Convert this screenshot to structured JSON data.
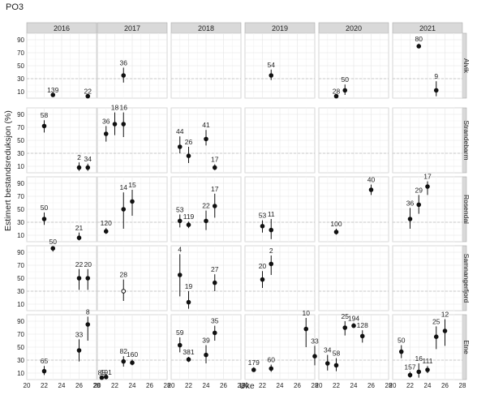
{
  "title": "PO3",
  "chart_data": {
    "type": "scatter",
    "subtype": "point-with-interval, faceted",
    "xlabel": "Uke",
    "ylabel": "Estimert bestandsreduksjon (%)",
    "xlim": [
      20,
      28
    ],
    "xticks": [
      20,
      22,
      24,
      26,
      28
    ],
    "ylim": [
      0,
      100
    ],
    "yticks": [
      10,
      30,
      50,
      70,
      90
    ],
    "reference_line_y": 30,
    "grid": true,
    "columns": [
      "2016",
      "2017",
      "2018",
      "2019",
      "2020",
      "2021"
    ],
    "rows": [
      "Alvik",
      "Strandebarm",
      "Rosendal",
      "Samnangerfjord",
      "Etne"
    ],
    "panels": [
      {
        "row": "Alvik",
        "col": "2016",
        "points": [
          {
            "x": 23,
            "y": 5,
            "n": "139"
          },
          {
            "x": 27,
            "y": 3,
            "n": "22"
          }
        ]
      },
      {
        "row": "Alvik",
        "col": "2017",
        "points": [
          {
            "x": 23,
            "y": 35,
            "lo": 24,
            "hi": 47,
            "n": "36"
          }
        ]
      },
      {
        "row": "Alvik",
        "col": "2018",
        "points": []
      },
      {
        "row": "Alvik",
        "col": "2019",
        "points": [
          {
            "x": 23,
            "y": 35,
            "lo": 28,
            "hi": 44,
            "n": "54"
          }
        ]
      },
      {
        "row": "Alvik",
        "col": "2020",
        "points": [
          {
            "x": 22,
            "y": 3,
            "n": "28"
          },
          {
            "x": 23,
            "y": 12,
            "lo": 5,
            "hi": 21,
            "n": "50"
          }
        ]
      },
      {
        "row": "Alvik",
        "col": "2021",
        "points": [
          {
            "x": 23,
            "y": 80,
            "lo": 77,
            "hi": 84,
            "n": "80"
          },
          {
            "x": 25,
            "y": 12,
            "lo": 3,
            "hi": 26,
            "n": "9"
          }
        ]
      },
      {
        "row": "Strandebarm",
        "col": "2016",
        "points": [
          {
            "x": 22,
            "y": 72,
            "lo": 62,
            "hi": 81,
            "n": "58"
          },
          {
            "x": 26,
            "y": 8,
            "lo": 3,
            "hi": 16,
            "n": "2"
          },
          {
            "x": 27,
            "y": 8,
            "lo": 3,
            "hi": 14,
            "n": "34"
          }
        ]
      },
      {
        "row": "Strandebarm",
        "col": "2017",
        "points": [
          {
            "x": 21,
            "y": 60,
            "lo": 48,
            "hi": 72,
            "n": "36"
          },
          {
            "x": 22,
            "y": 75,
            "lo": 58,
            "hi": 93,
            "n": "18"
          },
          {
            "x": 23,
            "y": 75,
            "lo": 55,
            "hi": 93,
            "n": "16"
          }
        ]
      },
      {
        "row": "Strandebarm",
        "col": "2018",
        "points": [
          {
            "x": 21,
            "y": 40,
            "lo": 30,
            "hi": 56,
            "n": "44"
          },
          {
            "x": 22,
            "y": 26,
            "lo": 15,
            "hi": 40,
            "n": "26"
          },
          {
            "x": 24,
            "y": 52,
            "lo": 42,
            "hi": 66,
            "n": "41"
          },
          {
            "x": 25,
            "y": 8,
            "lo": 4,
            "hi": 13,
            "n": "17"
          }
        ]
      },
      {
        "row": "Strandebarm",
        "col": "2019",
        "points": []
      },
      {
        "row": "Strandebarm",
        "col": "2020",
        "points": []
      },
      {
        "row": "Strandebarm",
        "col": "2021",
        "points": []
      },
      {
        "row": "Rosendal",
        "col": "2016",
        "points": [
          {
            "x": 22,
            "y": 35,
            "lo": 26,
            "hi": 45,
            "n": "50"
          },
          {
            "x": 26,
            "y": 6,
            "lo": 2,
            "hi": 14,
            "n": "21"
          }
        ]
      },
      {
        "row": "Rosendal",
        "col": "2017",
        "points": [
          {
            "x": 21,
            "y": 16,
            "lo": 12,
            "hi": 21,
            "n": "120"
          },
          {
            "x": 23,
            "y": 50,
            "lo": 20,
            "hi": 76,
            "n": "14"
          },
          {
            "x": 24,
            "y": 62,
            "lo": 40,
            "hi": 80,
            "n": "15"
          }
        ]
      },
      {
        "row": "Rosendal",
        "col": "2018",
        "points": [
          {
            "x": 21,
            "y": 32,
            "lo": 22,
            "hi": 42,
            "n": "53"
          },
          {
            "x": 22,
            "y": 26,
            "lo": 21,
            "hi": 31,
            "n": "119"
          },
          {
            "x": 24,
            "y": 32,
            "lo": 18,
            "hi": 48,
            "n": "22"
          },
          {
            "x": 25,
            "y": 55,
            "lo": 37,
            "hi": 74,
            "n": "17"
          }
        ]
      },
      {
        "row": "Rosendal",
        "col": "2019",
        "points": [
          {
            "x": 22,
            "y": 24,
            "lo": 14,
            "hi": 33,
            "n": "53"
          },
          {
            "x": 23,
            "y": 18,
            "lo": 4,
            "hi": 35,
            "n": "11"
          }
        ]
      },
      {
        "row": "Rosendal",
        "col": "2020",
        "points": [
          {
            "x": 22,
            "y": 15,
            "lo": 11,
            "hi": 20,
            "n": "100"
          },
          {
            "x": 26,
            "y": 80,
            "lo": 72,
            "hi": 88,
            "n": "40"
          }
        ]
      },
      {
        "row": "Rosendal",
        "col": "2021",
        "points": [
          {
            "x": 22,
            "y": 35,
            "lo": 20,
            "hi": 52,
            "n": "36"
          },
          {
            "x": 23,
            "y": 57,
            "lo": 43,
            "hi": 72,
            "n": "29"
          },
          {
            "x": 24,
            "y": 85,
            "lo": 72,
            "hi": 93,
            "n": "17"
          }
        ]
      },
      {
        "row": "Samnangerfjord",
        "col": "2016",
        "points": [
          {
            "x": 23,
            "y": 96,
            "lo": 91,
            "hi": 99,
            "n": "50"
          },
          {
            "x": 26,
            "y": 50,
            "lo": 32,
            "hi": 64,
            "n": "22"
          },
          {
            "x": 27,
            "y": 50,
            "lo": 32,
            "hi": 64,
            "n": "20"
          }
        ]
      },
      {
        "row": "Samnangerfjord",
        "col": "2017",
        "points": [
          {
            "x": 23,
            "y": 30,
            "lo": 15,
            "hi": 48,
            "n": "28",
            "open": true
          }
        ]
      },
      {
        "row": "Samnangerfjord",
        "col": "2018",
        "points": [
          {
            "x": 21,
            "y": 55,
            "lo": 22,
            "hi": 87,
            "n": "4"
          },
          {
            "x": 22,
            "y": 13,
            "lo": 3,
            "hi": 30,
            "n": "19"
          },
          {
            "x": 25,
            "y": 43,
            "lo": 30,
            "hi": 56,
            "n": "27"
          }
        ]
      },
      {
        "row": "Samnangerfjord",
        "col": "2019",
        "points": [
          {
            "x": 22,
            "y": 48,
            "lo": 35,
            "hi": 61,
            "n": "20"
          },
          {
            "x": 23,
            "y": 72,
            "lo": 55,
            "hi": 85,
            "n": "2"
          }
        ]
      },
      {
        "row": "Samnangerfjord",
        "col": "2020",
        "points": []
      },
      {
        "row": "Samnangerfjord",
        "col": "2021",
        "points": []
      },
      {
        "row": "Etne",
        "col": "2016",
        "points": [
          {
            "x": 22,
            "y": 13,
            "lo": 7,
            "hi": 21,
            "n": "65"
          },
          {
            "x": 26,
            "y": 45,
            "lo": 28,
            "hi": 62,
            "n": "33"
          },
          {
            "x": 27,
            "y": 85,
            "lo": 60,
            "hi": 97,
            "n": "8"
          }
        ]
      },
      {
        "row": "Etne",
        "col": "2017",
        "points": [
          {
            "x": 20.5,
            "y": 3,
            "n": "85"
          },
          {
            "x": 21,
            "y": 4,
            "n": "191"
          },
          {
            "x": 23,
            "y": 28,
            "lo": 20,
            "hi": 36,
            "n": "82"
          },
          {
            "x": 24,
            "y": 26,
            "lo": 22,
            "hi": 31,
            "n": "160"
          }
        ]
      },
      {
        "row": "Etne",
        "col": "2018",
        "points": [
          {
            "x": 21,
            "y": 53,
            "lo": 42,
            "hi": 65,
            "n": "59"
          },
          {
            "x": 22,
            "y": 31,
            "lo": 27,
            "hi": 35,
            "n": "381"
          },
          {
            "x": 24,
            "y": 38,
            "lo": 25,
            "hi": 53,
            "n": "39"
          },
          {
            "x": 25,
            "y": 72,
            "lo": 60,
            "hi": 83,
            "n": "35"
          }
        ]
      },
      {
        "row": "Etne",
        "col": "2019",
        "points": [
          {
            "x": 21,
            "y": 15,
            "lo": 12,
            "hi": 19,
            "n": "179"
          },
          {
            "x": 23,
            "y": 17,
            "lo": 12,
            "hi": 23,
            "n": "60"
          },
          {
            "x": 27,
            "y": 78,
            "lo": 50,
            "hi": 95,
            "n": "10"
          },
          {
            "x": 28,
            "y": 36,
            "lo": 22,
            "hi": 52,
            "n": "33"
          }
        ]
      },
      {
        "row": "Etne",
        "col": "2020",
        "points": [
          {
            "x": 21,
            "y": 25,
            "lo": 14,
            "hi": 38,
            "n": "34"
          },
          {
            "x": 22,
            "y": 22,
            "lo": 13,
            "hi": 33,
            "n": "58"
          },
          {
            "x": 23,
            "y": 80,
            "lo": 68,
            "hi": 90,
            "n": "25"
          },
          {
            "x": 24,
            "y": 83,
            "lo": 80,
            "hi": 87,
            "n": "194"
          },
          {
            "x": 25,
            "y": 67,
            "lo": 57,
            "hi": 76,
            "n": "128"
          }
        ]
      },
      {
        "row": "Etne",
        "col": "2021",
        "points": [
          {
            "x": 21,
            "y": 43,
            "lo": 33,
            "hi": 53,
            "n": "50"
          },
          {
            "x": 22,
            "y": 7,
            "lo": 3,
            "hi": 12,
            "n": "157"
          },
          {
            "x": 23,
            "y": 12,
            "lo": 3,
            "hi": 25,
            "n": "16"
          },
          {
            "x": 24,
            "y": 15,
            "lo": 10,
            "hi": 21,
            "n": "111"
          },
          {
            "x": 25,
            "y": 66,
            "lo": 47,
            "hi": 82,
            "n": "25"
          },
          {
            "x": 26,
            "y": 75,
            "lo": 52,
            "hi": 93,
            "n": "12"
          }
        ]
      }
    ]
  }
}
